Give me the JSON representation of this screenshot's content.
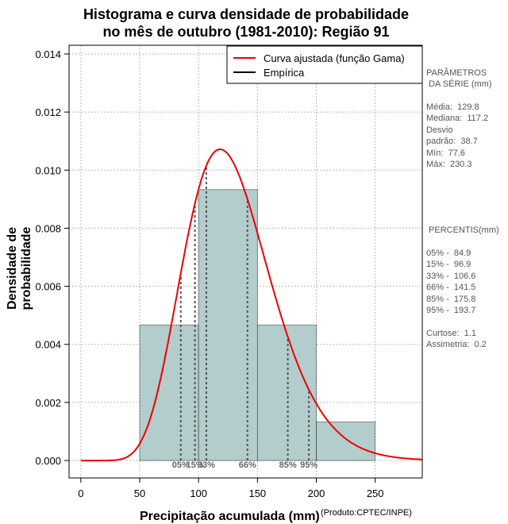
{
  "chart_data": {
    "type": "histogram",
    "title_line1": "Histograma e curva densidade de probabilidade",
    "title_line2": "no mês de outubro (1981-2010): Região 91",
    "xlabel": "Precipitação acumulada (mm)",
    "ylabel": "Densidade de probabilidade",
    "credit": "(Produto:CPTEC/INPE)",
    "xlim": [
      -10,
      290
    ],
    "ylim": [
      -0.0006,
      0.0143
    ],
    "xticks": [
      0,
      50,
      100,
      150,
      200,
      250
    ],
    "yticks": [
      0.0,
      0.002,
      0.004,
      0.006,
      0.008,
      0.01,
      0.012,
      0.014
    ],
    "ytick_labels": [
      "0.000",
      "0.002",
      "0.004",
      "0.006",
      "0.008",
      "0.010",
      "0.012",
      "0.014"
    ],
    "grid": true,
    "bins": [
      {
        "from": 50,
        "to": 100,
        "density": 0.00467
      },
      {
        "from": 100,
        "to": 150,
        "density": 0.00933
      },
      {
        "from": 150,
        "to": 200,
        "density": 0.00467
      },
      {
        "from": 200,
        "to": 250,
        "density": 0.00133
      }
    ],
    "gamma": {
      "shape": 11.27,
      "scale": 11.52
    },
    "legend": [
      {
        "label": "Curva ajustada (função Gama)",
        "color": "#ee0000"
      },
      {
        "label": "Empírica",
        "color": "#000000"
      }
    ],
    "percentile_lines": [
      {
        "label": "05%",
        "value": 84.9
      },
      {
        "label": "15%",
        "value": 96.9
      },
      {
        "label": "33%",
        "value": 106.6
      },
      {
        "label": "66%",
        "value": 141.5
      },
      {
        "label": "85%",
        "value": 175.8
      },
      {
        "label": "95%",
        "value": 193.7
      }
    ]
  },
  "colors": {
    "bar_fill": "#b3cccc",
    "curve": "#ee0000",
    "percentile_line": "#555555"
  },
  "params": {
    "header_line1": "PARÂMETROS",
    "header_line2": " DA SÉRIE (mm)",
    "media": "Média:  129.8",
    "mediana": "Mediana:  117.2",
    "desvio1": "Desvio",
    "desvio2": "padrão:  38.7",
    "min": "Mín:  77.6",
    "max": "Máx:  230.3"
  },
  "percentis": {
    "header": " PERCENTIS(mm)",
    "p05": "05% -  84.9",
    "p15": "15% -  96.9",
    "p33": "33% -  106.6",
    "p66": "66% -  141.5",
    "p85": "85% -  175.8",
    "p95": "95% -  193.7",
    "curtose": "Curtose:  1.1",
    "assimetria": "Assimetria:  0.2"
  }
}
